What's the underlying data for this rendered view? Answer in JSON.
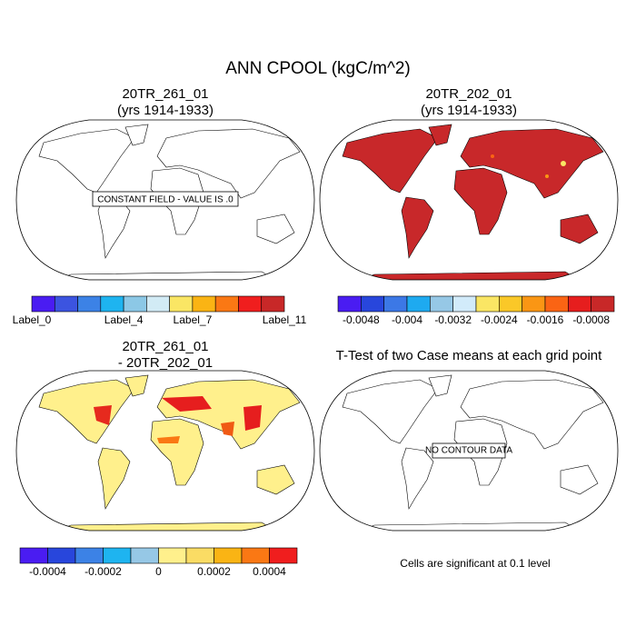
{
  "title": "ANN CPOOL (kgC/m^2)",
  "panels": [
    {
      "title": "20TR_261_01",
      "subtitle": "(yrs 1914-1933)",
      "note": "CONSTANT FIELD - VALUE IS .0",
      "colorbar": {
        "colors": [
          "#4a1cf2",
          "#3c54e0",
          "#3c82e6",
          "#1eb4f0",
          "#8cc8e6",
          "#d2ebf5",
          "#fae664",
          "#fab414",
          "#fa7814",
          "#f01e1e",
          "#c82828"
        ],
        "boundary_labels": [
          "Label_0",
          null,
          null,
          null,
          "Label_4",
          null,
          null,
          "Label_7",
          null,
          null,
          null,
          "Label_11"
        ]
      }
    },
    {
      "title": "20TR_202_01",
      "subtitle": "(yrs 1914-1933)",
      "colorbar": {
        "colors": [
          "#4a1cf2",
          "#2846dc",
          "#3c78e6",
          "#1eaaf0",
          "#96c8e6",
          "#d2ebfa",
          "#fae664",
          "#fac828",
          "#fa9614",
          "#fa6414",
          "#e61e1e",
          "#c82828"
        ],
        "boundary_labels": [
          null,
          "-0.0048",
          null,
          "-0.004",
          null,
          "-0.0032",
          null,
          "-0.0024",
          null,
          "-0.0016",
          null,
          "-0.0008",
          null
        ]
      }
    },
    {
      "title": "20TR_261_01",
      "subtitle": "- 20TR_202_01",
      "colorbar": {
        "colors": [
          "#4a1cf2",
          "#2846dc",
          "#3c82e6",
          "#1eb4f0",
          "#96c8e6",
          "#fff08c",
          "#fadc64",
          "#fab414",
          "#fa7814",
          "#f01e1e"
        ],
        "boundary_labels": [
          null,
          "-0.0004",
          null,
          "-0.0002",
          null,
          "0",
          null,
          "0.0002",
          null,
          "0.0004",
          null
        ]
      }
    },
    {
      "title": "T-Test of two Case means at each grid point",
      "note": "NO CONTOUR DATA",
      "footnote": "Cells are significant at 0.1 level"
    }
  ]
}
